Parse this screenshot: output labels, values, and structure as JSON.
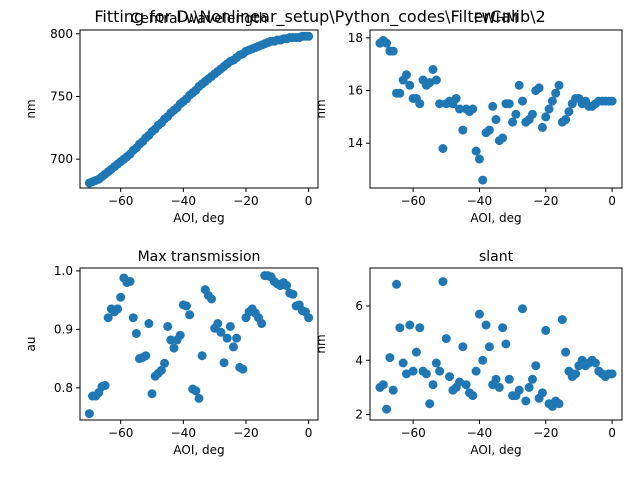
{
  "suptitle": "Fitting for D:\\Nonlinear_setup\\Python_codes\\FilterCalib\\2",
  "chart_data": [
    {
      "type": "scatter",
      "title": "Central wavelength",
      "xlabel": "AOI, deg",
      "ylabel": "nm",
      "xlim": [
        -73,
        3
      ],
      "ylim": [
        677,
        803
      ],
      "xticks": [
        -60,
        -40,
        -20,
        0
      ],
      "yticks": [
        700,
        750,
        800
      ],
      "color": "#1f77b4",
      "points": [
        [
          -70,
          681
        ],
        [
          -69,
          682
        ],
        [
          -68,
          683
        ],
        [
          -67,
          684
        ],
        [
          -66,
          686
        ],
        [
          -65,
          688
        ],
        [
          -64,
          690
        ],
        [
          -63,
          692
        ],
        [
          -62,
          694
        ],
        [
          -61,
          696
        ],
        [
          -60,
          698
        ],
        [
          -59,
          700
        ],
        [
          -58,
          702
        ],
        [
          -57,
          704
        ],
        [
          -56,
          707
        ],
        [
          -55,
          709
        ],
        [
          -54,
          712
        ],
        [
          -53,
          714
        ],
        [
          -52,
          717
        ],
        [
          -51,
          719
        ],
        [
          -50,
          722
        ],
        [
          -49,
          724
        ],
        [
          -48,
          727
        ],
        [
          -47,
          729
        ],
        [
          -46,
          732
        ],
        [
          -45,
          734
        ],
        [
          -44,
          737
        ],
        [
          -43,
          739
        ],
        [
          -42,
          741
        ],
        [
          -41,
          744
        ],
        [
          -40,
          746
        ],
        [
          -39,
          748
        ],
        [
          -38,
          751
        ],
        [
          -37,
          753
        ],
        [
          -36,
          755
        ],
        [
          -35,
          758
        ],
        [
          -34,
          760
        ],
        [
          -33,
          762
        ],
        [
          -32,
          764
        ],
        [
          -31,
          766
        ],
        [
          -30,
          768
        ],
        [
          -29,
          770
        ],
        [
          -28,
          772
        ],
        [
          -27,
          774
        ],
        [
          -26,
          776
        ],
        [
          -25,
          778
        ],
        [
          -24,
          779
        ],
        [
          -23,
          781
        ],
        [
          -22,
          783
        ],
        [
          -21,
          784
        ],
        [
          -20,
          786
        ],
        [
          -19,
          787
        ],
        [
          -18,
          788
        ],
        [
          -17,
          789
        ],
        [
          -16,
          790
        ],
        [
          -15,
          791
        ],
        [
          -14,
          792
        ],
        [
          -13,
          793
        ],
        [
          -12,
          794
        ],
        [
          -11,
          794
        ],
        [
          -10,
          795
        ],
        [
          -9,
          795
        ],
        [
          -8,
          796
        ],
        [
          -7,
          796
        ],
        [
          -6,
          797
        ],
        [
          -5,
          797
        ],
        [
          -4,
          797
        ],
        [
          -3,
          797
        ],
        [
          -2,
          798
        ],
        [
          -1,
          798
        ],
        [
          0,
          798
        ]
      ]
    },
    {
      "type": "scatter",
      "title": "FWHM",
      "xlabel": "AOI, deg",
      "ylabel": "nm",
      "xlim": [
        -73,
        3
      ],
      "ylim": [
        12.3,
        18.3
      ],
      "xticks": [
        -60,
        -40,
        -20,
        0
      ],
      "yticks": [
        14,
        16,
        18
      ],
      "color": "#1f77b4",
      "points": [
        [
          -70,
          17.8
        ],
        [
          -69,
          17.9
        ],
        [
          -68,
          17.8
        ],
        [
          -67,
          17.5
        ],
        [
          -66,
          17.5
        ],
        [
          -65,
          15.9
        ],
        [
          -64,
          15.9
        ],
        [
          -63,
          16.4
        ],
        [
          -62,
          16.6
        ],
        [
          -61,
          16.2
        ],
        [
          -60,
          15.7
        ],
        [
          -59,
          15.7
        ],
        [
          -58,
          15.5
        ],
        [
          -57,
          16.4
        ],
        [
          -56,
          16.2
        ],
        [
          -55,
          16.3
        ],
        [
          -54,
          16.8
        ],
        [
          -53,
          16.4
        ],
        [
          -52,
          15.5
        ],
        [
          -51,
          13.8
        ],
        [
          -50,
          15.5
        ],
        [
          -49,
          15.6
        ],
        [
          -48,
          15.5
        ],
        [
          -47,
          15.7
        ],
        [
          -46,
          15.3
        ],
        [
          -45,
          14.5
        ],
        [
          -44,
          15.3
        ],
        [
          -43,
          15.2
        ],
        [
          -42,
          15.3
        ],
        [
          -41,
          13.7
        ],
        [
          -40,
          13.4
        ],
        [
          -39,
          12.6
        ],
        [
          -38,
          14.4
        ],
        [
          -37,
          14.5
        ],
        [
          -36,
          15.4
        ],
        [
          -35,
          14.9
        ],
        [
          -34,
          14.1
        ],
        [
          -33,
          14.2
        ],
        [
          -32,
          15.5
        ],
        [
          -31,
          15.5
        ],
        [
          -30,
          14.8
        ],
        [
          -29,
          15.1
        ],
        [
          -28,
          16.2
        ],
        [
          -27,
          15.6
        ],
        [
          -26,
          14.8
        ],
        [
          -25,
          14.9
        ],
        [
          -24,
          15.1
        ],
        [
          -23,
          16.0
        ],
        [
          -22,
          16.1
        ],
        [
          -21,
          14.6
        ],
        [
          -20,
          15.0
        ],
        [
          -19,
          15.3
        ],
        [
          -18,
          15.6
        ],
        [
          -17,
          15.9
        ],
        [
          -16,
          16.2
        ],
        [
          -15,
          14.8
        ],
        [
          -14,
          14.9
        ],
        [
          -13,
          15.2
        ],
        [
          -12,
          15.5
        ],
        [
          -11,
          15.7
        ],
        [
          -10,
          15.7
        ],
        [
          -9,
          15.5
        ],
        [
          -8,
          15.6
        ],
        [
          -7,
          15.4
        ],
        [
          -6,
          15.4
        ],
        [
          -5,
          15.5
        ],
        [
          -4,
          15.6
        ],
        [
          -3,
          15.6
        ],
        [
          -2,
          15.6
        ],
        [
          -1,
          15.6
        ],
        [
          0,
          15.6
        ]
      ]
    },
    {
      "type": "scatter",
      "title": "Max transmission",
      "xlabel": "AOI, deg",
      "ylabel": "au",
      "xlim": [
        -73,
        3
      ],
      "ylim": [
        0.745,
        1.005
      ],
      "xticks": [
        -60,
        -40,
        -20,
        0
      ],
      "yticks": [
        0.8,
        0.9,
        1.0
      ],
      "yticklabels": [
        "0.8",
        "0.9",
        "1.0"
      ],
      "color": "#1f77b4",
      "points": [
        [
          -70,
          0.756
        ],
        [
          -69,
          0.786
        ],
        [
          -68,
          0.786
        ],
        [
          -67,
          0.792
        ],
        [
          -66,
          0.802
        ],
        [
          -65,
          0.804
        ],
        [
          -64,
          0.92
        ],
        [
          -63,
          0.935
        ],
        [
          -62,
          0.93
        ],
        [
          -61,
          0.935
        ],
        [
          -60,
          0.955
        ],
        [
          -59,
          0.988
        ],
        [
          -58,
          0.98
        ],
        [
          -57,
          0.982
        ],
        [
          -56,
          0.92
        ],
        [
          -55,
          0.893
        ],
        [
          -54,
          0.85
        ],
        [
          -53,
          0.852
        ],
        [
          -52,
          0.855
        ],
        [
          -51,
          0.91
        ],
        [
          -50,
          0.79
        ],
        [
          -49,
          0.82
        ],
        [
          -48,
          0.825
        ],
        [
          -47,
          0.83
        ],
        [
          -46,
          0.842
        ],
        [
          -45,
          0.905
        ],
        [
          -44,
          0.882
        ],
        [
          -43,
          0.868
        ],
        [
          -42,
          0.882
        ],
        [
          -41,
          0.89
        ],
        [
          -40,
          0.942
        ],
        [
          -39,
          0.94
        ],
        [
          -38,
          0.925
        ],
        [
          -37,
          0.798
        ],
        [
          -36,
          0.795
        ],
        [
          -35,
          0.782
        ],
        [
          -34,
          0.855
        ],
        [
          -33,
          0.968
        ],
        [
          -32,
          0.958
        ],
        [
          -31,
          0.952
        ],
        [
          -30,
          0.902
        ],
        [
          -29,
          0.91
        ],
        [
          -28,
          0.895
        ],
        [
          -27,
          0.843
        ],
        [
          -26,
          0.885
        ],
        [
          -25,
          0.905
        ],
        [
          -24,
          0.87
        ],
        [
          -23,
          0.885
        ],
        [
          -22,
          0.835
        ],
        [
          -21,
          0.832
        ],
        [
          -20,
          0.92
        ],
        [
          -19,
          0.93
        ],
        [
          -18,
          0.935
        ],
        [
          -17,
          0.928
        ],
        [
          -16,
          0.92
        ],
        [
          -15,
          0.91
        ],
        [
          -14,
          0.992
        ],
        [
          -13,
          0.992
        ],
        [
          -12,
          0.99
        ],
        [
          -11,
          0.982
        ],
        [
          -10,
          0.978
        ],
        [
          -9,
          0.975
        ],
        [
          -8,
          0.98
        ],
        [
          -7,
          0.975
        ],
        [
          -6,
          0.962
        ],
        [
          -5,
          0.96
        ],
        [
          -4,
          0.94
        ],
        [
          -3,
          0.942
        ],
        [
          -2,
          0.932
        ],
        [
          -1,
          0.93
        ],
        [
          0,
          0.92
        ]
      ]
    },
    {
      "type": "scatter",
      "title": "slant",
      "xlabel": "AOI, deg",
      "ylabel": "nm",
      "xlim": [
        -73,
        3
      ],
      "ylim": [
        1.8,
        7.4
      ],
      "xticks": [
        -60,
        -40,
        -20,
        0
      ],
      "yticks": [
        2,
        4,
        6
      ],
      "color": "#1f77b4",
      "points": [
        [
          -70,
          3.0
        ],
        [
          -69,
          3.1
        ],
        [
          -68,
          2.2
        ],
        [
          -67,
          4.1
        ],
        [
          -66,
          2.9
        ],
        [
          -65,
          6.8
        ],
        [
          -64,
          5.2
        ],
        [
          -63,
          3.9
        ],
        [
          -62,
          3.5
        ],
        [
          -61,
          5.3
        ],
        [
          -60,
          3.6
        ],
        [
          -59,
          4.3
        ],
        [
          -58,
          5.2
        ],
        [
          -57,
          3.6
        ],
        [
          -56,
          3.5
        ],
        [
          -55,
          2.4
        ],
        [
          -54,
          3.1
        ],
        [
          -53,
          3.9
        ],
        [
          -52,
          3.6
        ],
        [
          -51,
          6.9
        ],
        [
          -50,
          4.8
        ],
        [
          -49,
          3.4
        ],
        [
          -48,
          2.9
        ],
        [
          -47,
          3.0
        ],
        [
          -46,
          3.2
        ],
        [
          -45,
          4.5
        ],
        [
          -44,
          3.1
        ],
        [
          -43,
          2.8
        ],
        [
          -42,
          2.7
        ],
        [
          -41,
          3.6
        ],
        [
          -40,
          5.7
        ],
        [
          -39,
          4.0
        ],
        [
          -38,
          5.3
        ],
        [
          -37,
          4.5
        ],
        [
          -36,
          3.1
        ],
        [
          -35,
          3.3
        ],
        [
          -34,
          3.0
        ],
        [
          -33,
          5.2
        ],
        [
          -32,
          4.6
        ],
        [
          -31,
          3.3
        ],
        [
          -30,
          2.7
        ],
        [
          -29,
          2.7
        ],
        [
          -28,
          2.9
        ],
        [
          -27,
          5.9
        ],
        [
          -26,
          2.5
        ],
        [
          -25,
          3.0
        ],
        [
          -24,
          3.3
        ],
        [
          -23,
          3.8
        ],
        [
          -22,
          2.6
        ],
        [
          -21,
          2.8
        ],
        [
          -20,
          5.1
        ],
        [
          -19,
          2.4
        ],
        [
          -18,
          2.3
        ],
        [
          -17,
          2.5
        ],
        [
          -16,
          2.4
        ],
        [
          -15,
          5.5
        ],
        [
          -14,
          4.3
        ],
        [
          -13,
          3.6
        ],
        [
          -12,
          3.4
        ],
        [
          -11,
          3.5
        ],
        [
          -10,
          3.8
        ],
        [
          -9,
          4.0
        ],
        [
          -8,
          3.8
        ],
        [
          -7,
          3.9
        ],
        [
          -6,
          4.0
        ],
        [
          -5,
          3.9
        ],
        [
          -4,
          3.6
        ],
        [
          -3,
          3.5
        ],
        [
          -2,
          3.4
        ],
        [
          -1,
          3.5
        ],
        [
          0,
          3.5
        ]
      ]
    }
  ]
}
